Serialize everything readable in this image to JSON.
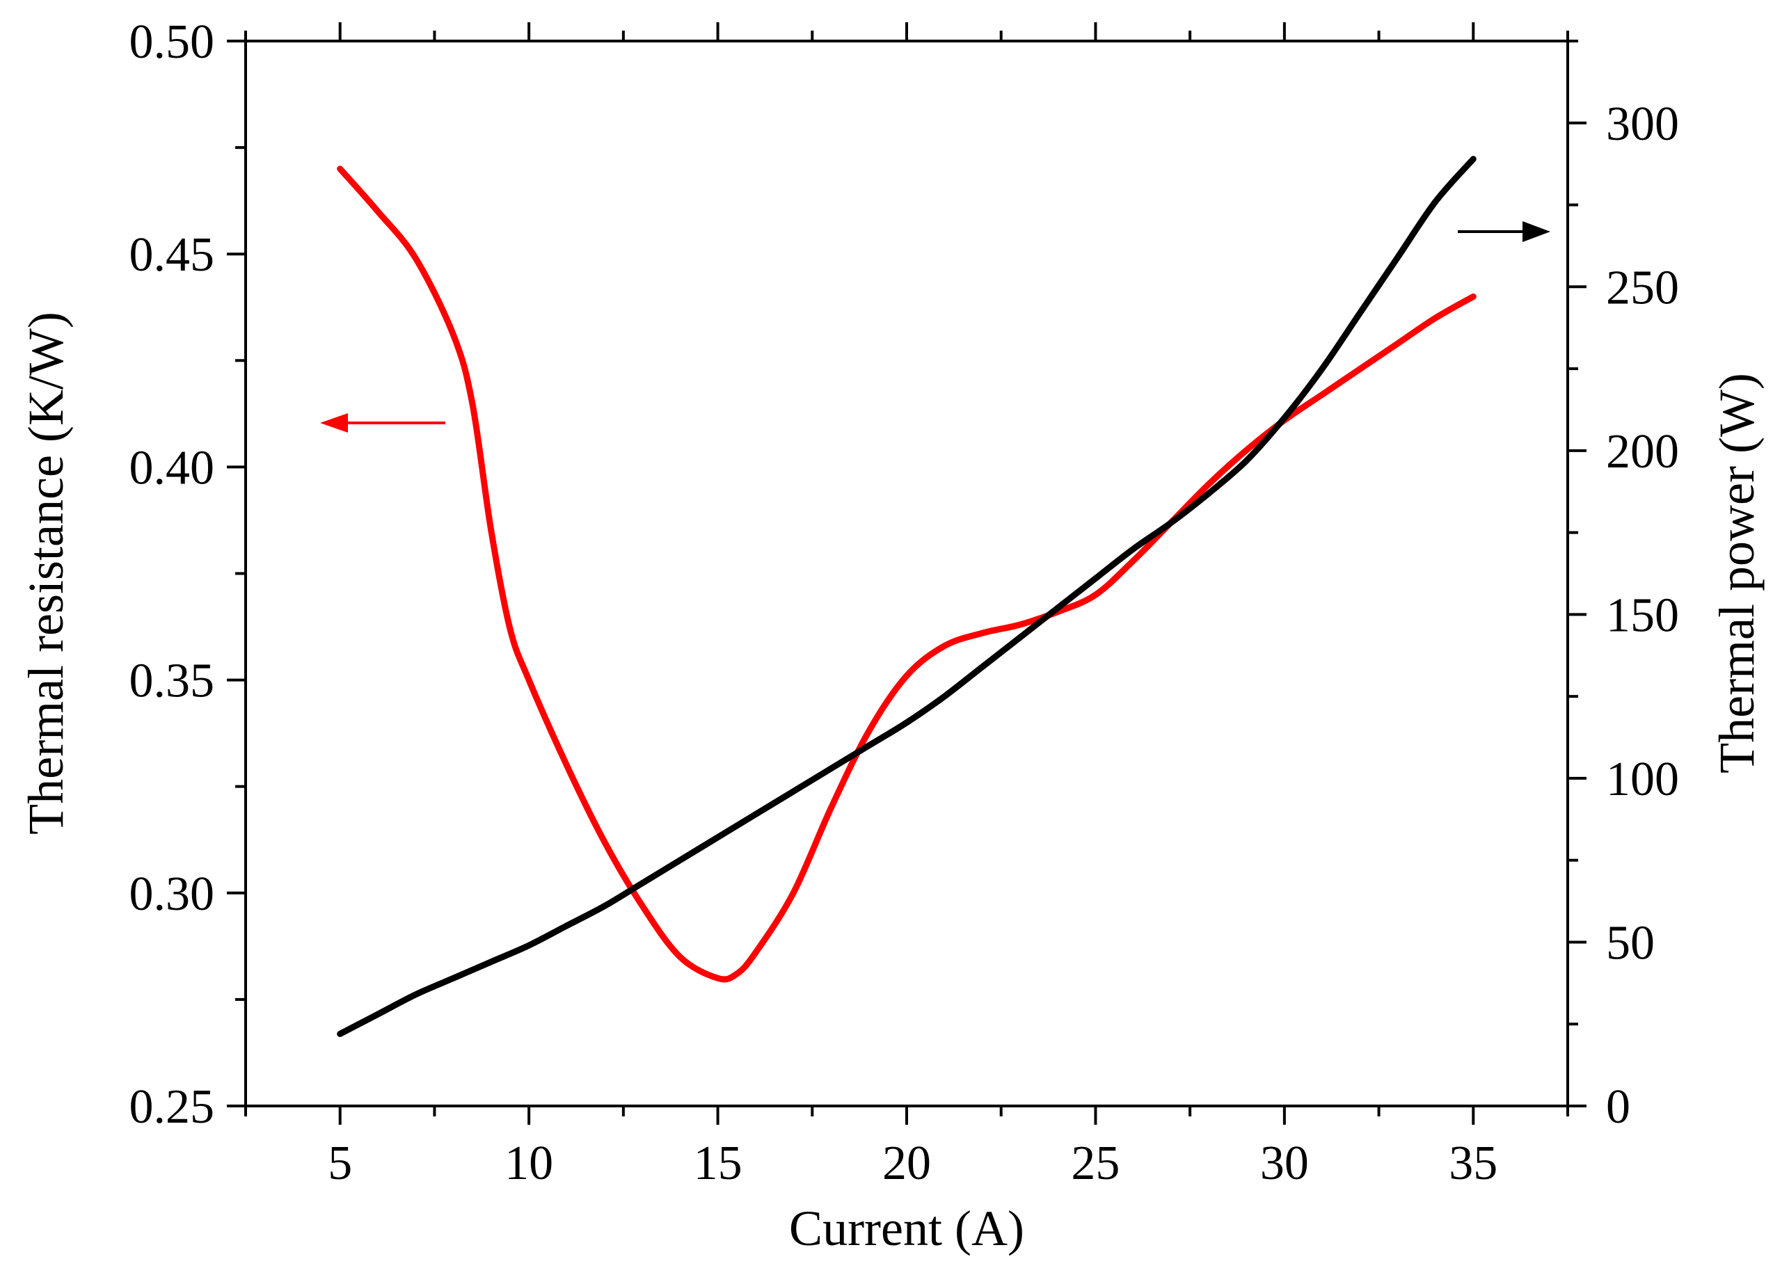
{
  "chart_data": {
    "type": "line",
    "x_axis": {
      "label": "Current (A)",
      "range": [
        2.5,
        37.5
      ],
      "ticks": [
        5,
        10,
        15,
        20,
        25,
        30,
        35
      ],
      "tick_labels": [
        "5",
        "10",
        "15",
        "20",
        "25",
        "30",
        "35"
      ]
    },
    "y_left": {
      "label": "Thermal resistance (K/W)",
      "range": [
        0.25,
        0.5
      ],
      "ticks": [
        0.25,
        0.3,
        0.35,
        0.4,
        0.45,
        0.5
      ],
      "tick_labels": [
        "0.25",
        "0.30",
        "0.35",
        "0.40",
        "0.45",
        "0.50"
      ]
    },
    "y_right": {
      "label": "Thermal power (W)",
      "range": [
        0,
        325
      ],
      "ticks": [
        0,
        50,
        100,
        150,
        200,
        250,
        300
      ],
      "tick_labels": [
        "0",
        "50",
        "100",
        "150",
        "200",
        "250",
        "300"
      ]
    },
    "grid": false,
    "series": [
      {
        "axis": "left",
        "color": "#ff0000",
        "x": [
          5,
          6,
          7,
          8,
          8.5,
          9,
          9.5,
          10,
          11,
          12,
          13,
          14,
          15,
          15.5,
          16,
          17,
          18,
          19,
          20,
          21,
          22,
          23,
          24,
          25,
          26,
          27,
          28,
          29,
          30,
          31,
          32,
          33,
          34,
          35
        ],
        "y": [
          0.47,
          0.46,
          0.449,
          0.431,
          0.415,
          0.385,
          0.362,
          0.35,
          0.33,
          0.312,
          0.297,
          0.285,
          0.28,
          0.281,
          0.286,
          0.3,
          0.32,
          0.338,
          0.351,
          0.358,
          0.361,
          0.363,
          0.366,
          0.37,
          0.378,
          0.387,
          0.396,
          0.404,
          0.411,
          0.417,
          0.423,
          0.429,
          0.435,
          0.44
        ]
      },
      {
        "axis": "right",
        "color": "#000000",
        "x": [
          5,
          6,
          7,
          8,
          9,
          10,
          11,
          12,
          13,
          14,
          15,
          16,
          17,
          18,
          19,
          20,
          21,
          22,
          23,
          24,
          25,
          26,
          27,
          28,
          29,
          30,
          31,
          32,
          33,
          34,
          35
        ],
        "y": [
          22,
          28,
          34,
          39,
          44,
          49,
          55,
          61,
          68,
          75,
          82,
          89,
          96,
          103,
          110,
          117,
          125,
          134,
          143,
          152,
          161,
          170,
          178,
          187,
          197,
          210,
          225,
          242,
          259,
          276,
          289
        ]
      }
    ],
    "annotations": [
      {
        "type": "arrow",
        "direction": "left",
        "color": "#ff0000",
        "points_to": "left axis"
      },
      {
        "type": "arrow",
        "direction": "right",
        "color": "#000000",
        "points_to": "right axis"
      }
    ]
  }
}
